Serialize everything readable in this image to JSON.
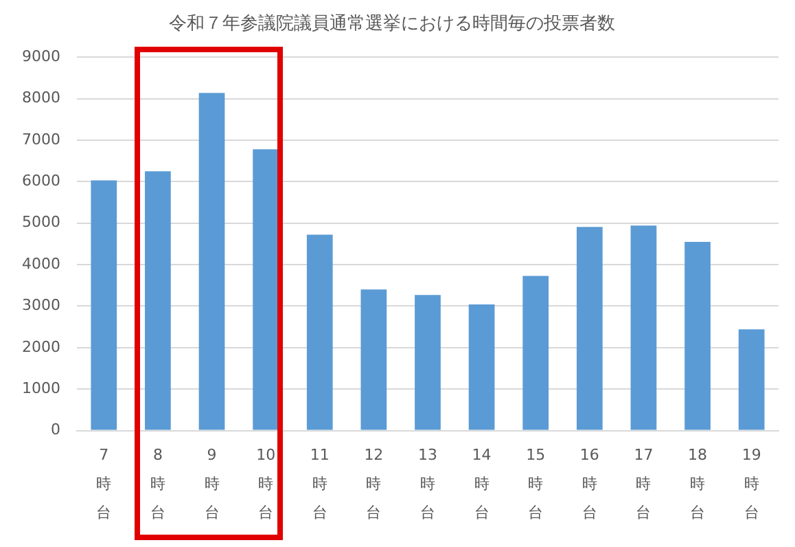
{
  "chart_data": {
    "type": "bar",
    "title": "令和７年参議院議員通常選挙における時間毎の投票者数",
    "categories": [
      "7時台",
      "8時台",
      "9時台",
      "10時台",
      "11時台",
      "12時台",
      "13時台",
      "14時台",
      "15時台",
      "16時台",
      "17時台",
      "18時台",
      "19時台"
    ],
    "values": [
      6030,
      6250,
      8140,
      6780,
      4720,
      3400,
      3270,
      3040,
      3730,
      4910,
      4940,
      4550,
      2440
    ],
    "color": "#5b9bd5",
    "ylim": [
      0,
      9000
    ],
    "yticks": [
      0,
      1000,
      2000,
      3000,
      4000,
      5000,
      6000,
      7000,
      8000,
      9000
    ],
    "grid": "y"
  }
}
